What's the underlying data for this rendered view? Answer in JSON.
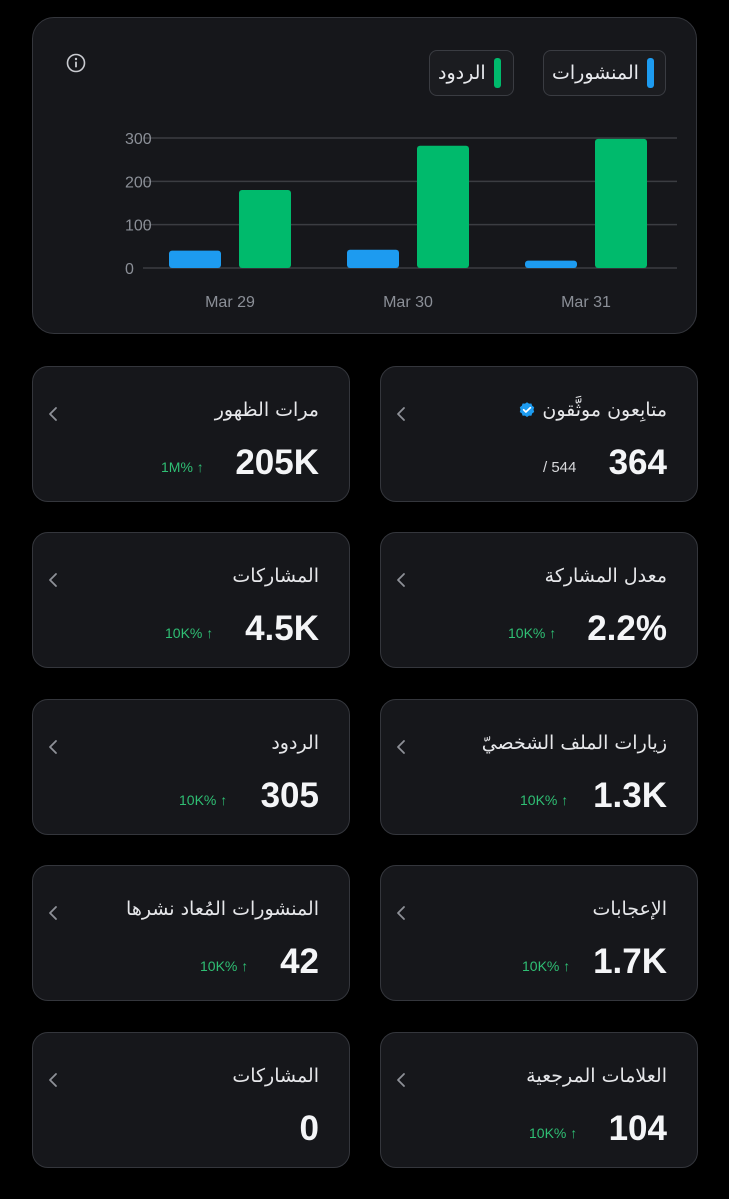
{
  "chart": {
    "legend": {
      "posts": "المنشورات",
      "replies": "الردود"
    },
    "colors": {
      "posts": "#1d9bf0",
      "replies": "#00ba6c",
      "grid": "#3b3d42",
      "axis_text": "#8b8f97"
    },
    "icons": {
      "info": "info-icon"
    }
  },
  "chart_data": {
    "type": "bar",
    "categories": [
      "Mar 29",
      "Mar 30",
      "Mar 31"
    ],
    "series": [
      {
        "name": "المنشورات",
        "values": [
          40,
          42,
          17
        ]
      },
      {
        "name": "الردود",
        "values": [
          180,
          282,
          298
        ]
      }
    ],
    "yticks": [
      "0",
      "100",
      "200",
      "300"
    ],
    "ylim": [
      0,
      300
    ],
    "grid": true,
    "legend_position": "top-right"
  },
  "stats": [
    {
      "label": "متابِعون موثَّقون",
      "value": "364",
      "sub": "/ 544",
      "icon": "verified-badge-icon"
    },
    {
      "label": "مرات الظهور",
      "value": "205K",
      "delta": "1M% ↑"
    },
    {
      "label": "معدل المشاركة",
      "value": "2.2%",
      "delta": "10K% ↑"
    },
    {
      "label": "المشاركات",
      "value": "4.5K",
      "delta": "10K% ↑"
    },
    {
      "label": "زيارات الملف الشخصيّ",
      "value": "1.3K",
      "delta": "10K% ↑"
    },
    {
      "label": "الردود",
      "value": "305",
      "delta": "10K% ↑"
    },
    {
      "label": "الإعجابات",
      "value": "1.7K",
      "delta": "10K% ↑"
    },
    {
      "label": "المنشورات المُعاد نشرها",
      "value": "42",
      "delta": "10K% ↑"
    },
    {
      "label": "العلامات المرجعية",
      "value": "104",
      "delta": "10K% ↑"
    },
    {
      "label": "المشاركات",
      "value": "0"
    }
  ]
}
